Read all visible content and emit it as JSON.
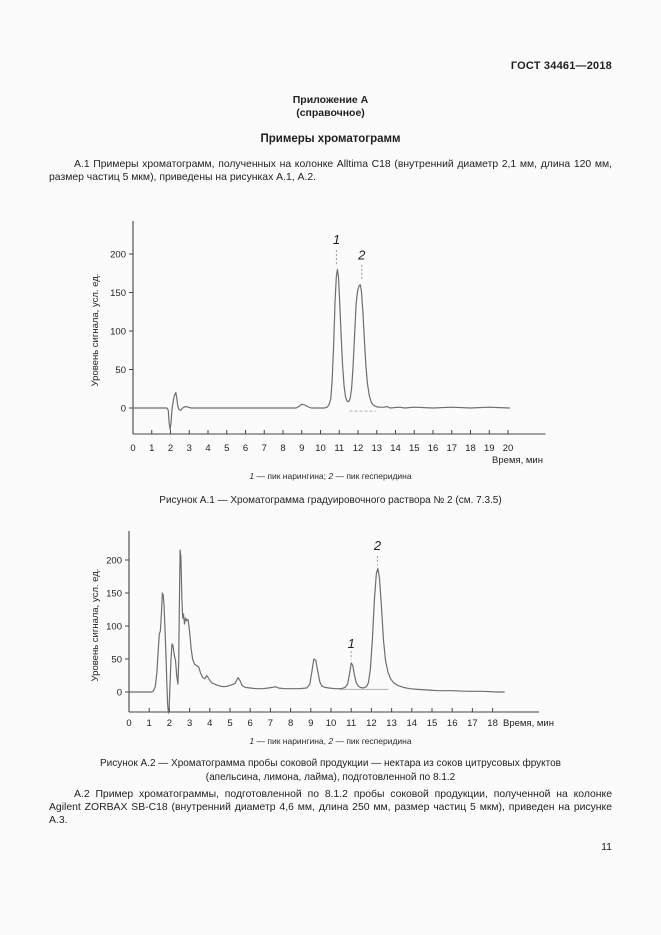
{
  "page": {
    "header": "ГОСТ 34461—2018",
    "appendix_title": "Приложение А",
    "appendix_subtitle": "(справочное)",
    "section_title": "Примеры хроматограмм",
    "para_a1": "А.1 Примеры хроматограмм, полученных на колонке Alltima С18 (внутренний диаметр 2,1 мм, длина 120 мм, размер частиц 5 мкм), приведены на рисунках А.1, А.2.",
    "para_a2": "А.2 Пример хроматограммы, подготовленной по 8.1.2 пробы соковой продукции, полученной на колонке Agilent ZORBAX SB-C18 (внутренний диаметр 4,6 мм, длина 250 мм, размер частиц 5 мкм), приведен на рисунке А.3.",
    "page_number": "11"
  },
  "chart_data": [
    {
      "type": "line",
      "title": "Рисунок А.1 — Хроматограмма градуировочного раствора № 2 (см. 7.3.5)",
      "xlabel": "Время, мин",
      "ylabel": "Уровень сигнала, усл. ед.",
      "xlim": [
        0,
        20
      ],
      "ylim": [
        -34,
        243
      ],
      "xticks": [
        0,
        1,
        2,
        3,
        4,
        5,
        6,
        7,
        8,
        9,
        10,
        11,
        12,
        13,
        14,
        15,
        16,
        17,
        18,
        19,
        20
      ],
      "yticks": [
        0,
        50,
        100,
        150,
        200
      ],
      "grid": false,
      "legend_segments": [
        {
          "t": "1",
          "i": true
        },
        {
          "t": " — пик нарингина; ",
          "i": false
        },
        {
          "t": "2",
          "i": true
        },
        {
          "t": " — пик гесперидина",
          "i": false
        }
      ],
      "peaks": [
        {
          "label": "1",
          "name": "нарингин",
          "time_min": 10.9,
          "height": 180
        },
        {
          "label": "2",
          "name": "гесперидин",
          "time_min": 12.15,
          "height": 160
        }
      ],
      "annotations": [
        {
          "label": "1",
          "x": 10.85,
          "y": 213,
          "leader": [
            205,
            186
          ]
        },
        {
          "label": "2",
          "x": 12.2,
          "y": 193,
          "leader": [
            186,
            166
          ]
        }
      ],
      "baseline_segments": [
        {
          "x1": 11.55,
          "x2": 12.95,
          "y": -4,
          "dashed": true
        }
      ],
      "points": [
        [
          0,
          0
        ],
        [
          1.0,
          0
        ],
        [
          1.8,
          0
        ],
        [
          1.88,
          -3
        ],
        [
          1.93,
          -20
        ],
        [
          1.98,
          -28
        ],
        [
          2.03,
          -18
        ],
        [
          2.08,
          -2
        ],
        [
          2.13,
          6
        ],
        [
          2.2,
          16
        ],
        [
          2.28,
          20
        ],
        [
          2.33,
          14
        ],
        [
          2.38,
          4
        ],
        [
          2.45,
          -2
        ],
        [
          2.55,
          -3
        ],
        [
          2.65,
          0
        ],
        [
          2.8,
          2
        ],
        [
          2.95,
          1
        ],
        [
          3.1,
          0
        ],
        [
          5.0,
          0
        ],
        [
          8.7,
          0
        ],
        [
          8.85,
          2
        ],
        [
          9.0,
          5
        ],
        [
          9.15,
          4
        ],
        [
          9.3,
          2
        ],
        [
          9.5,
          0
        ],
        [
          10.2,
          0
        ],
        [
          10.35,
          1
        ],
        [
          10.45,
          4
        ],
        [
          10.55,
          12
        ],
        [
          10.62,
          35
        ],
        [
          10.7,
          80
        ],
        [
          10.78,
          140
        ],
        [
          10.84,
          170
        ],
        [
          10.9,
          180
        ],
        [
          10.96,
          170
        ],
        [
          11.02,
          140
        ],
        [
          11.1,
          95
        ],
        [
          11.18,
          55
        ],
        [
          11.26,
          28
        ],
        [
          11.34,
          14
        ],
        [
          11.42,
          9
        ],
        [
          11.5,
          8
        ],
        [
          11.58,
          12
        ],
        [
          11.66,
          25
        ],
        [
          11.74,
          55
        ],
        [
          11.82,
          95
        ],
        [
          11.9,
          135
        ],
        [
          11.98,
          152
        ],
        [
          12.06,
          159
        ],
        [
          12.12,
          160
        ],
        [
          12.18,
          152
        ],
        [
          12.26,
          125
        ],
        [
          12.34,
          88
        ],
        [
          12.42,
          55
        ],
        [
          12.5,
          32
        ],
        [
          12.6,
          16
        ],
        [
          12.7,
          8
        ],
        [
          12.8,
          4
        ],
        [
          12.95,
          2
        ],
        [
          13.1,
          1
        ],
        [
          13.4,
          1
        ],
        [
          13.55,
          2
        ],
        [
          13.7,
          0
        ],
        [
          14.2,
          1
        ],
        [
          14.5,
          0
        ],
        [
          15,
          1
        ],
        [
          16,
          0
        ],
        [
          17,
          1
        ],
        [
          18,
          0
        ],
        [
          19,
          1
        ],
        [
          20.1,
          0
        ]
      ]
    },
    {
      "type": "line",
      "title_line1": "Рисунок А.2 — Хроматограмма пробы соковой продукции — нектара из соков цитрусовых фруктов",
      "title_line2": "(апельсина, лимона, лайма), подготовленной по 8.1.2",
      "xlabel": "Время, мин",
      "ylabel": "Уровень сигнала, усл. ед.",
      "xlim": [
        0,
        18
      ],
      "ylim": [
        -30,
        248
      ],
      "xticks": [
        0,
        1,
        2,
        3,
        4,
        5,
        6,
        7,
        8,
        9,
        10,
        11,
        12,
        13,
        14,
        15,
        16,
        17,
        18
      ],
      "yticks": [
        0,
        50,
        100,
        150,
        200
      ],
      "grid": false,
      "legend_segments": [
        {
          "t": "1",
          "i": true
        },
        {
          "t": " — пик нарингина, ",
          "i": false
        },
        {
          "t": "2",
          "i": true
        },
        {
          "t": " — пик гесперидина",
          "i": false
        }
      ],
      "peaks": [
        {
          "label": "1",
          "name": "нарингин",
          "time_min": 11.0,
          "height": 44
        },
        {
          "label": "2",
          "name": "гесперидин",
          "time_min": 12.3,
          "height": 187
        }
      ],
      "annotations": [
        {
          "label": "2",
          "x": 12.3,
          "y": 215,
          "leader": [
            206,
            192
          ]
        },
        {
          "label": "1",
          "x": 11.0,
          "y": 67,
          "leader": [
            62,
            49
          ]
        }
      ],
      "baseline_segments": [
        {
          "x1": 10.4,
          "x2": 12.85,
          "y": 4,
          "dashed": false
        }
      ],
      "points": [
        [
          0,
          0
        ],
        [
          1.1,
          0
        ],
        [
          1.2,
          1
        ],
        [
          1.3,
          8
        ],
        [
          1.38,
          30
        ],
        [
          1.45,
          65
        ],
        [
          1.5,
          88
        ],
        [
          1.55,
          92
        ],
        [
          1.6,
          115
        ],
        [
          1.65,
          150
        ],
        [
          1.7,
          146
        ],
        [
          1.74,
          130
        ],
        [
          1.78,
          95
        ],
        [
          1.83,
          55
        ],
        [
          1.87,
          15
        ],
        [
          1.91,
          -18
        ],
        [
          1.95,
          -32
        ],
        [
          1.99,
          -22
        ],
        [
          2.03,
          10
        ],
        [
          2.08,
          50
        ],
        [
          2.13,
          73
        ],
        [
          2.18,
          70
        ],
        [
          2.25,
          55
        ],
        [
          2.3,
          48
        ],
        [
          2.36,
          25
        ],
        [
          2.42,
          12
        ],
        [
          2.46,
          45
        ],
        [
          2.5,
          150
        ],
        [
          2.53,
          215
        ],
        [
          2.57,
          205
        ],
        [
          2.62,
          140
        ],
        [
          2.66,
          112
        ],
        [
          2.7,
          118
        ],
        [
          2.75,
          103
        ],
        [
          2.8,
          112
        ],
        [
          2.85,
          108
        ],
        [
          2.92,
          110
        ],
        [
          3.0,
          92
        ],
        [
          3.08,
          65
        ],
        [
          3.15,
          50
        ],
        [
          3.25,
          42
        ],
        [
          3.35,
          40
        ],
        [
          3.45,
          38
        ],
        [
          3.55,
          28
        ],
        [
          3.65,
          22
        ],
        [
          3.75,
          20
        ],
        [
          3.85,
          25
        ],
        [
          3.95,
          20
        ],
        [
          4.1,
          14
        ],
        [
          4.3,
          11
        ],
        [
          4.5,
          9
        ],
        [
          4.7,
          8
        ],
        [
          4.9,
          9
        ],
        [
          5.1,
          11
        ],
        [
          5.25,
          13
        ],
        [
          5.4,
          22
        ],
        [
          5.5,
          17
        ],
        [
          5.6,
          10
        ],
        [
          5.75,
          7
        ],
        [
          6.0,
          6
        ],
        [
          6.3,
          5
        ],
        [
          6.6,
          5
        ],
        [
          6.9,
          6
        ],
        [
          7.1,
          7
        ],
        [
          7.25,
          8
        ],
        [
          7.4,
          6
        ],
        [
          7.7,
          5
        ],
        [
          8.0,
          5
        ],
        [
          8.4,
          5
        ],
        [
          8.8,
          6
        ],
        [
          8.95,
          12
        ],
        [
          9.05,
          30
        ],
        [
          9.15,
          50
        ],
        [
          9.25,
          48
        ],
        [
          9.35,
          30
        ],
        [
          9.45,
          15
        ],
        [
          9.55,
          9
        ],
        [
          9.7,
          7
        ],
        [
          9.9,
          6
        ],
        [
          10.2,
          5
        ],
        [
          10.5,
          5
        ],
        [
          10.7,
          7
        ],
        [
          10.82,
          12
        ],
        [
          10.92,
          28
        ],
        [
          11.0,
          44
        ],
        [
          11.08,
          40
        ],
        [
          11.16,
          26
        ],
        [
          11.25,
          14
        ],
        [
          11.35,
          9
        ],
        [
          11.45,
          7
        ],
        [
          11.6,
          6
        ],
        [
          11.75,
          8
        ],
        [
          11.85,
          14
        ],
        [
          11.95,
          35
        ],
        [
          12.05,
          80
        ],
        [
          12.15,
          140
        ],
        [
          12.25,
          180
        ],
        [
          12.32,
          187
        ],
        [
          12.4,
          172
        ],
        [
          12.5,
          128
        ],
        [
          12.6,
          78
        ],
        [
          12.7,
          48
        ],
        [
          12.82,
          30
        ],
        [
          12.95,
          20
        ],
        [
          13.1,
          14
        ],
        [
          13.3,
          10
        ],
        [
          13.6,
          7
        ],
        [
          13.9,
          5
        ],
        [
          14.3,
          4
        ],
        [
          14.8,
          3
        ],
        [
          15.3,
          2
        ],
        [
          16.0,
          2
        ],
        [
          16.8,
          1
        ],
        [
          17.5,
          1
        ],
        [
          18.2,
          0
        ],
        [
          18.6,
          0
        ]
      ]
    }
  ]
}
